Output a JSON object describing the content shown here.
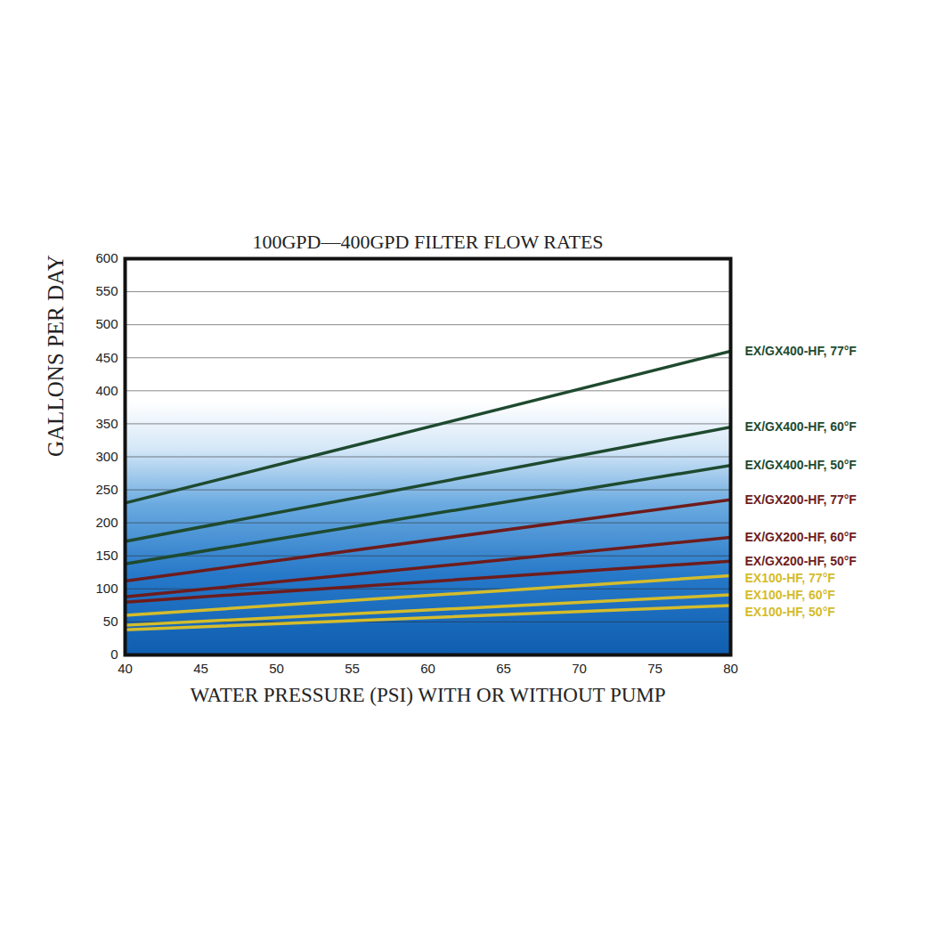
{
  "chart_data": {
    "type": "line",
    "title": "100GPD—400GPD FILTER FLOW RATES",
    "x_label": "WATER PRESSURE (PSI) WITH OR WITHOUT PUMP",
    "y_label": "GALLONS PER DAY",
    "x": [
      40,
      80
    ],
    "series": [
      {
        "name": "EX/GX400-HF, 77°F",
        "color": "#1e4a2f",
        "values": [
          230,
          460
        ]
      },
      {
        "name": "EX/GX400-HF, 60°F",
        "color": "#1e4a2f",
        "values": [
          172,
          345
        ]
      },
      {
        "name": "EX/GX400-HF, 50°F",
        "color": "#1e4a2f",
        "values": [
          138,
          287
        ]
      },
      {
        "name": "EX/GX200-HF, 77°F",
        "color": "#6e1c1c",
        "values": [
          112,
          235
        ]
      },
      {
        "name": "EX/GX200-HF, 60°F",
        "color": "#6e1c1c",
        "values": [
          88,
          178
        ]
      },
      {
        "name": "EX/GX200-HF, 50°F",
        "color": "#6e1c1c",
        "values": [
          80,
          142
        ]
      },
      {
        "name": "EX100-HF, 77°F",
        "color": "#d4bc2c",
        "values": [
          60,
          120
        ]
      },
      {
        "name": "EX100-HF, 60°F",
        "color": "#d4bc2c",
        "values": [
          45,
          91
        ]
      },
      {
        "name": "EX100-HF, 50°F",
        "color": "#d4bc2c",
        "values": [
          38,
          75
        ]
      }
    ],
    "xlim": [
      40,
      80
    ],
    "ylim": [
      0,
      600
    ],
    "xticks": [
      40,
      45,
      50,
      55,
      60,
      65,
      70,
      75,
      80
    ],
    "yticks": [
      0,
      50,
      100,
      150,
      200,
      250,
      300,
      350,
      400,
      450,
      500,
      550,
      600
    ],
    "grid": true
  }
}
